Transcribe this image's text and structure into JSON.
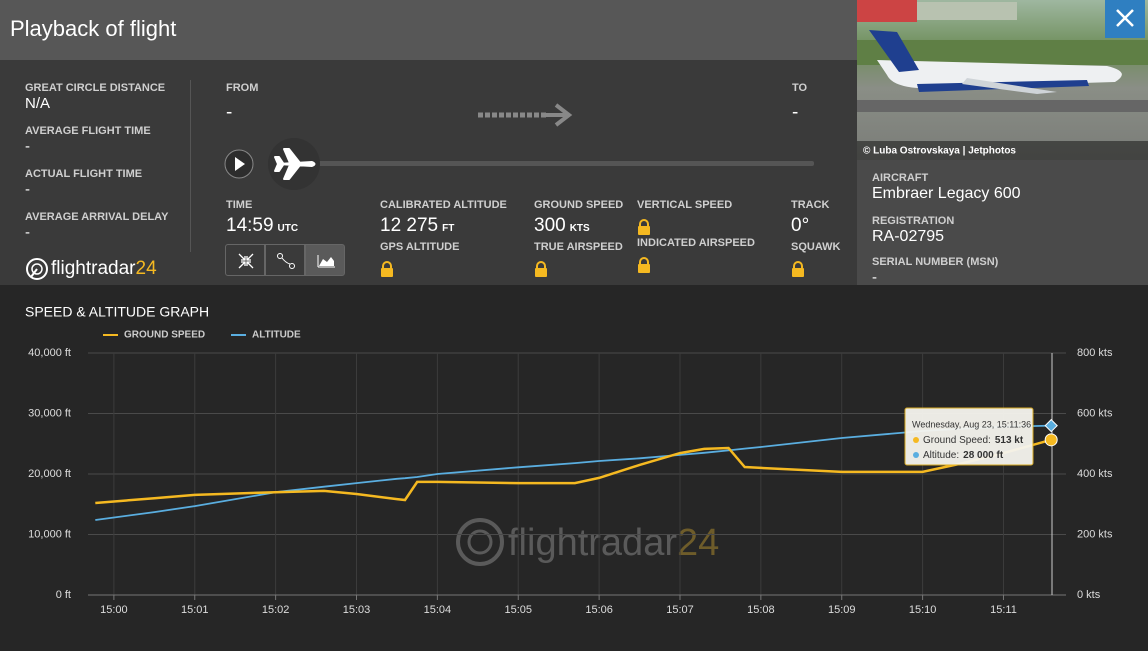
{
  "header": {
    "title": "Playback of flight",
    "photo_credit": "© Luba Ostrovskaya | Jetphotos"
  },
  "stats": [
    {
      "label": "GREAT CIRCLE DISTANCE",
      "value": "N/A"
    },
    {
      "label": "AVERAGE FLIGHT TIME",
      "value": "-"
    },
    {
      "label": "ACTUAL FLIGHT TIME",
      "value": "-"
    },
    {
      "label": "AVERAGE ARRIVAL DELAY",
      "value": "-"
    }
  ],
  "logo": {
    "text": "flightradar",
    "suffix": "24"
  },
  "route": {
    "from_label": "FROM",
    "from": "-",
    "to_label": "TO",
    "to": "-"
  },
  "readings": {
    "time_label": "TIME",
    "time": "14:59",
    "time_unit": "UTC",
    "calibrated_altitude_label": "CALIBRATED ALTITUDE",
    "calibrated_altitude": "12 275",
    "calibrated_altitude_unit": "FT",
    "gps_altitude_label": "GPS ALTITUDE",
    "ground_speed_label": "GROUND SPEED",
    "ground_speed": "300",
    "ground_speed_unit": "KTS",
    "true_airspeed_label": "TRUE AIRSPEED",
    "vertical_speed_label": "VERTICAL SPEED",
    "indicated_airspeed_label": "INDICATED AIRSPEED",
    "track_label": "TRACK",
    "track": "0°",
    "squawk_label": "SQUAWK"
  },
  "aircraft": {
    "aircraft_label": "AIRCRAFT",
    "aircraft": "Embraer Legacy 600",
    "registration_label": "REGISTRATION",
    "registration": "RA-02795",
    "serial_label": "SERIAL NUMBER (MSN)",
    "serial": "-"
  },
  "chart_data": {
    "type": "line",
    "title": "SPEED & ALTITUDE GRAPH",
    "watermark": {
      "text": "flightradar",
      "suffix": "24"
    },
    "x": [
      -0.23,
      0.5,
      1,
      2,
      2.6,
      3,
      3.5,
      3.6,
      3.75,
      4,
      5,
      5.7,
      6,
      6.5,
      7,
      7.3,
      7.6,
      7.8,
      8,
      9,
      10,
      10.5,
      11,
      11.59
    ],
    "xlim": [
      -0.32,
      11.6
    ],
    "xticks": [
      {
        "value": 0,
        "label": "15:00"
      },
      {
        "value": 1,
        "label": "15:01"
      },
      {
        "value": 2,
        "label": "15:02"
      },
      {
        "value": 3,
        "label": "15:03"
      },
      {
        "value": 4,
        "label": "15:04"
      },
      {
        "value": 5,
        "label": "15:05"
      },
      {
        "value": 6,
        "label": "15:06"
      },
      {
        "value": 7,
        "label": "15:07"
      },
      {
        "value": 8,
        "label": "15:08"
      },
      {
        "value": 9,
        "label": "15:09"
      },
      {
        "value": 10,
        "label": "15:10"
      },
      {
        "value": 11,
        "label": "15:11"
      }
    ],
    "ylim": [
      0,
      40000
    ],
    "yticks": [
      {
        "value": 0,
        "label": "0 ft"
      },
      {
        "value": 10000,
        "label": "10,000 ft"
      },
      {
        "value": 20000,
        "label": "20,000 ft"
      },
      {
        "value": 30000,
        "label": "30,000 ft"
      },
      {
        "value": 40000,
        "label": "40,000 ft"
      }
    ],
    "y2lim": [
      0,
      800
    ],
    "y2ticks": [
      {
        "value": 0,
        "label": "0 kts"
      },
      {
        "value": 200,
        "label": "200 kts"
      },
      {
        "value": 400,
        "label": "400 kts"
      },
      {
        "value": 600,
        "label": "600 kts"
      },
      {
        "value": 800,
        "label": "800 kts"
      }
    ],
    "grid": true,
    "series": [
      {
        "name": "GROUND SPEED",
        "color": "#f5b921",
        "axis": "y2",
        "values": [
          304,
          320,
          331,
          340,
          344,
          334,
          317,
          314,
          374,
          374,
          370,
          370,
          387,
          430,
          469,
          483,
          486,
          423,
          420,
          407,
          407,
          436,
          469,
          513
        ]
      },
      {
        "name": "ALTITUDE",
        "color": "#5aaee0",
        "values": [
          12400,
          13700,
          14700,
          17000,
          17900,
          18500,
          19200,
          19300,
          19500,
          20000,
          21100,
          21800,
          22150,
          22600,
          23150,
          23500,
          23900,
          24200,
          24460,
          25950,
          27100,
          27500,
          27800,
          28000
        ]
      }
    ],
    "tooltip": {
      "title": "Wednesday, Aug 23, 15:11:36",
      "ground_speed_label": "Ground Speed:",
      "ground_speed": "513 kt",
      "altitude_label": "Altitude:",
      "altitude": "28 000 ft"
    }
  }
}
